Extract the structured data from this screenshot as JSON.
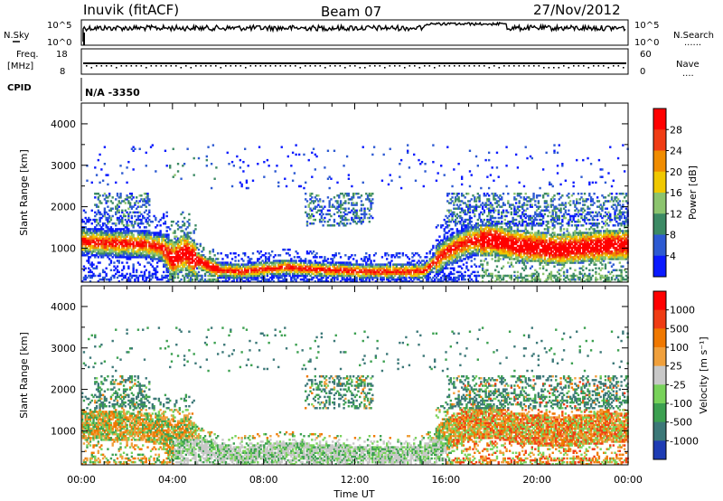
{
  "header": {
    "station": "Inuvik (fitACF)",
    "beam": "Beam 07",
    "date": "27/Nov/2012"
  },
  "top_panels": {
    "nsky_label": "N.Sky",
    "nsearch_label": "N.Search",
    "nsky_ticks": [
      "10^5",
      "10^0"
    ],
    "nsearch_ticks": [
      "10^5",
      "10^0"
    ],
    "freq_label": "Freq.",
    "freq_unit": "[MHz]",
    "freq_ticks": [
      "18",
      "8"
    ],
    "nave_label": "Nave",
    "nave_ticks": [
      "60",
      "0"
    ],
    "cpid_label": "CPID",
    "cpid_value": "N/A -3350"
  },
  "chart_data": [
    {
      "type": "heatmap",
      "name": "power",
      "ylabel": "Slant Range [km]",
      "xlabel": "Time UT",
      "x_ticks": [
        "00:00",
        "04:00",
        "08:00",
        "12:00",
        "16:00",
        "20:00",
        "00:00"
      ],
      "xlim_hours": [
        0,
        24
      ],
      "ylim_km": [
        180,
        4500
      ],
      "y_ticks": [
        1000,
        2000,
        3000,
        4000
      ],
      "colorbar": {
        "label": "Power [dB]",
        "ticks": [
          "4",
          "8",
          "12",
          "16",
          "20",
          "24",
          "28"
        ],
        "colors": [
          "#0a1aff",
          "#2d5ad2",
          "#3c8a64",
          "#8cc46e",
          "#f0c800",
          "#f08c00",
          "#f03c14",
          "#ff0000"
        ]
      }
    },
    {
      "type": "heatmap",
      "name": "velocity",
      "ylabel": "Slant Range [km]",
      "xlabel": "Time UT",
      "x_ticks": [
        "00:00",
        "04:00",
        "08:00",
        "12:00",
        "16:00",
        "20:00",
        "00:00"
      ],
      "xlim_hours": [
        0,
        24
      ],
      "ylim_km": [
        180,
        4500
      ],
      "y_ticks": [
        1000,
        2000,
        3000,
        4000
      ],
      "colorbar": {
        "label": "Velocity [m s⁻¹]",
        "ticks": [
          "1000",
          "500",
          "100",
          "25",
          "-25",
          "-100",
          "-500",
          "-1000"
        ],
        "colors": [
          "#1e3cb4",
          "#3c7878",
          "#3ca050",
          "#78d25a",
          "#c8c8c8",
          "#f0a03c",
          "#f07800",
          "#f03c14",
          "#ff0000"
        ]
      }
    }
  ],
  "colors": {
    "power": [
      "#0a1aff",
      "#2d5ad2",
      "#3c8a64",
      "#8cc46e",
      "#f0c800",
      "#f08c00",
      "#f03c14",
      "#ff0000"
    ],
    "velocity_pos": [
      "#1e3cb4",
      "#3c7878",
      "#3ca050",
      "#78d25a"
    ],
    "velocity_gs": "#c8c8c8",
    "velocity_neg": [
      "#f0a03c",
      "#f07800",
      "#f03c14",
      "#ff0000"
    ]
  },
  "x_axis_title": "Time UT"
}
